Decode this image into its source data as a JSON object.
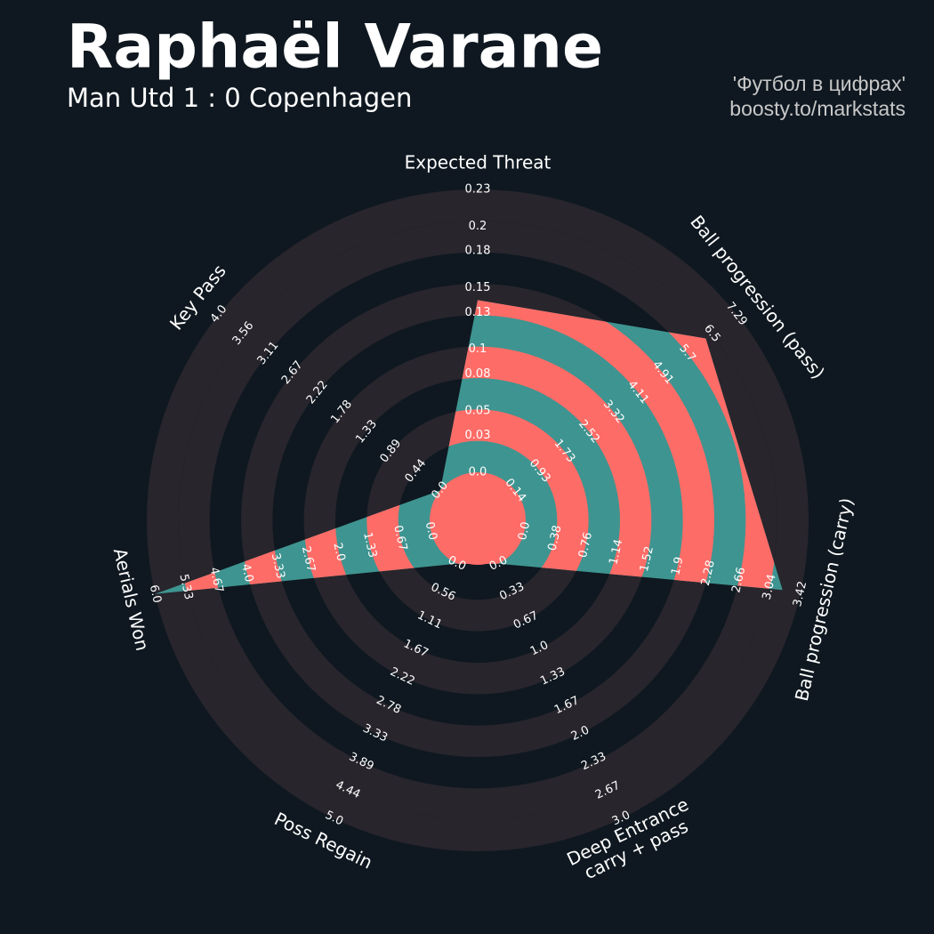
{
  "chart_data": {
    "type": "radar",
    "title": "Raphaël Varane",
    "subtitle": "Man Utd 1 : 0 Copenhagen",
    "credits": [
      "'Футбол в цифрах'",
      "boosty.to/markstats"
    ],
    "params": [
      [
        "Expected Threat"
      ],
      [
        "Ball progression (pass)"
      ],
      [
        "Ball progression (carry)"
      ],
      [
        "Deep Entrance",
        "carry + pass"
      ],
      [
        "Poss Regain"
      ],
      [
        "Aerials Won"
      ],
      [
        "Key Pass"
      ]
    ],
    "values": [
      0.14,
      6.3,
      3.2,
      0,
      0,
      6.0,
      0
    ],
    "ticks": [
      [
        {
          "value": 0,
          "label": "0.0"
        },
        0.03,
        0.05,
        0.08,
        0.1,
        0.13,
        0.15,
        0.18,
        0.2,
        0.23
      ],
      [
        0.14,
        0.93,
        1.73,
        2.52,
        3.32,
        4.11,
        4.91,
        5.7,
        6.5,
        7.29
      ],
      [
        {
          "value": 0,
          "label": "0.0"
        },
        0.38,
        0.76,
        1.14,
        1.52,
        1.9,
        2.28,
        2.66,
        3.04,
        3.42
      ],
      [
        {
          "value": 0,
          "label": "0.0"
        },
        0.33,
        0.67,
        {
          "value": 1,
          "label": "1.0"
        },
        1.33,
        1.67,
        {
          "value": 2,
          "label": "2.0"
        },
        2.33,
        2.67,
        {
          "value": 3,
          "label": "3.0"
        }
      ],
      [
        {
          "value": 0,
          "label": "0.0"
        },
        0.56,
        1.11,
        1.67,
        2.22,
        2.78,
        3.33,
        3.89,
        4.44,
        {
          "value": 5,
          "label": "5.0"
        }
      ],
      [
        {
          "value": 0,
          "label": "0.0"
        },
        0.67,
        1.33,
        {
          "value": 2,
          "label": "2.0"
        },
        2.67,
        3.33,
        {
          "value": 4,
          "label": "4.0"
        },
        4.67,
        5.33,
        {
          "value": 6,
          "label": "6.0"
        }
      ],
      [
        {
          "value": 0,
          "label": "0.0"
        },
        0.44,
        0.89,
        1.33,
        1.78,
        2.22,
        2.67,
        3.11,
        3.56,
        {
          "value": 4,
          "label": "4.0"
        }
      ]
    ],
    "color": "#3e9490",
    "ring_color": "#fe6c67",
    "ring_face": "#28252c",
    "background": "#0f1820"
  }
}
